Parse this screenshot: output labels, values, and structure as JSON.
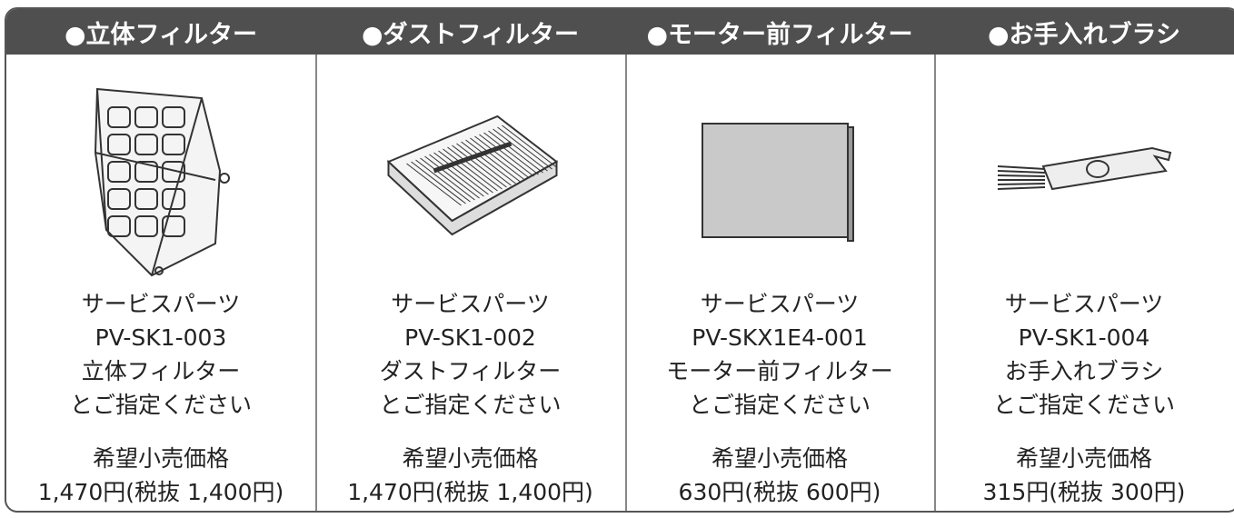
{
  "columns": [
    {
      "header": "●立体フィルター",
      "lines": [
        "サービスパーツ",
        "PV-SK1-003",
        "立体フィルター",
        "とご指定ください"
      ],
      "price_label": "希望小売価格",
      "price": "1,470円(税抜 1,400円)"
    },
    {
      "header": "●ダストフィルター",
      "lines": [
        "サービスパーツ",
        "PV-SK1-002",
        "ダストフィルター",
        "とご指定ください"
      ],
      "price_label": "希望小売価格",
      "price": "1,470円(税抜 1,400円)"
    },
    {
      "header": "●モーター前フィルター",
      "lines": [
        "サービスパーツ",
        "PV-SKX1E4-001",
        "モーター前フィルター",
        "とご指定ください"
      ],
      "price_label": "希望小売価格",
      "price": "630円(税抜 600円)"
    },
    {
      "header": "●お手入れブラシ",
      "lines": [
        "サービスパーツ",
        "PV-SK1-004",
        "お手入れブラシ",
        "とご指定ください"
      ],
      "price_label": "希望小売価格",
      "price": "315円(税抜 300円)"
    }
  ]
}
